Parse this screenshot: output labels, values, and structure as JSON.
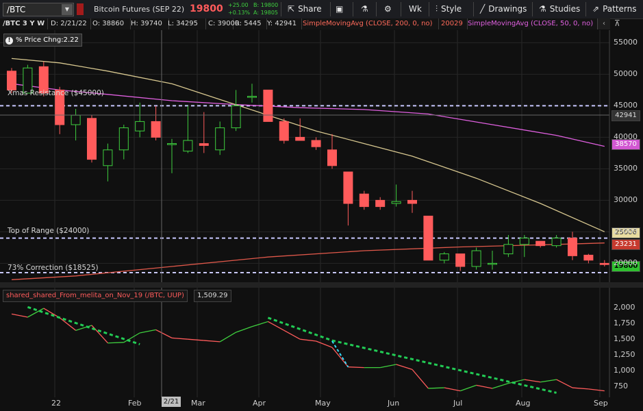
{
  "toolbar": {
    "symbol": "/BTC",
    "instrument": "Bitcoin Futures (SEP 22)",
    "last": "19800",
    "change": "+25.00",
    "change_pct": "+0.13%",
    "bid": "B: 19800",
    "ask": "A: 19805",
    "share": "Share",
    "period": "Wk",
    "style": "Style",
    "drawings": "Drawings",
    "studies": "Studies",
    "patterns": "Patterns"
  },
  "infobar": {
    "title": "/BTC 3 Y W",
    "date": "D: 2/21/22",
    "open": "O: 38860",
    "high": "H: 39740",
    "low": "L: 34295",
    "close": "C: 39000",
    "range": "R: 5445",
    "y": "Y: 42941",
    "sma200": "SimpleMovingAvg (CLOSE, 200, 0, no)",
    "sma200_val": "20029",
    "sma50": "SimpleMovingAvg (CLOSE, 50, 0, no)"
  },
  "price_change_label": "% Price Chng:2.22",
  "lines": {
    "xmas": "Xmas Resistance ($45000)",
    "top": "Top of Range ($24000)",
    "corr": "73% Correction ($18525)"
  },
  "tags": {
    "y": "42941",
    "sma50": "38570",
    "sma200_a": "25006",
    "sma200_b": "23231",
    "last": "19800"
  },
  "indicator": {
    "name": "shared_shared_From_melita_on_Nov_19 (/BTC, UUP)",
    "value": "1,509.29"
  },
  "x_ticks": [
    "22",
    "Feb",
    "Mar",
    "Apr",
    "May",
    "Jun",
    "Jul",
    "Aug",
    "Sep"
  ],
  "cursor_date": "2/21",
  "y_ticks": [
    "55000",
    "50000",
    "45000",
    "40000",
    "35000",
    "30000",
    "25000",
    "20000"
  ],
  "ind_y_ticks": [
    "2,000",
    "1,750",
    "1,500",
    "1,250",
    "1,000",
    "750"
  ],
  "colors": {
    "up": "#3fd03f",
    "down": "#ff5b5b",
    "sma200": "#e0584a",
    "sma50": "#e060e0",
    "sma_tan": "#d8c890",
    "hline": "#c8c8ff"
  },
  "chart_data": {
    "type": "candlestick",
    "timeframe": "W",
    "candles": [
      {
        "o": 50500,
        "h": 51000,
        "l": 47000,
        "c": 47500
      },
      {
        "o": 47000,
        "h": 51500,
        "l": 47000,
        "c": 51000
      },
      {
        "o": 51200,
        "h": 52000,
        "l": 46500,
        "c": 47000
      },
      {
        "o": 47500,
        "h": 48000,
        "l": 40500,
        "c": 42000
      },
      {
        "o": 42000,
        "h": 44500,
        "l": 39500,
        "c": 43500
      },
      {
        "o": 43000,
        "h": 43500,
        "l": 36000,
        "c": 36500
      },
      {
        "o": 35500,
        "h": 39000,
        "l": 33000,
        "c": 38000
      },
      {
        "o": 38000,
        "h": 42000,
        "l": 36500,
        "c": 41500
      },
      {
        "o": 41000,
        "h": 45500,
        "l": 40000,
        "c": 42500
      },
      {
        "o": 42500,
        "h": 45000,
        "l": 39500,
        "c": 40000
      },
      {
        "o": 38860,
        "h": 39740,
        "l": 34295,
        "c": 39000
      },
      {
        "o": 37800,
        "h": 45000,
        "l": 37500,
        "c": 39500
      },
      {
        "o": 39000,
        "h": 44000,
        "l": 37500,
        "c": 38700
      },
      {
        "o": 38000,
        "h": 42500,
        "l": 37200,
        "c": 41500
      },
      {
        "o": 41500,
        "h": 47500,
        "l": 41000,
        "c": 45000
      },
      {
        "o": 46500,
        "h": 48500,
        "l": 45500,
        "c": 46500
      },
      {
        "o": 47500,
        "h": 47500,
        "l": 42500,
        "c": 42500
      },
      {
        "o": 42500,
        "h": 43000,
        "l": 39000,
        "c": 39500
      },
      {
        "o": 40000,
        "h": 43000,
        "l": 39500,
        "c": 39500
      },
      {
        "o": 39500,
        "h": 40000,
        "l": 38000,
        "c": 38500
      },
      {
        "o": 38000,
        "h": 40500,
        "l": 35000,
        "c": 35500
      },
      {
        "o": 34500,
        "h": 34500,
        "l": 26000,
        "c": 29500
      },
      {
        "o": 31000,
        "h": 31500,
        "l": 28500,
        "c": 29000
      },
      {
        "o": 30000,
        "h": 30500,
        "l": 28500,
        "c": 29000
      },
      {
        "o": 29500,
        "h": 32500,
        "l": 29000,
        "c": 29800
      },
      {
        "o": 30000,
        "h": 31500,
        "l": 28000,
        "c": 29500
      },
      {
        "o": 27500,
        "h": 27500,
        "l": 20500,
        "c": 20500
      },
      {
        "o": 20500,
        "h": 21800,
        "l": 20000,
        "c": 21500
      },
      {
        "o": 21500,
        "h": 21500,
        "l": 18800,
        "c": 19500
      },
      {
        "o": 19500,
        "h": 22500,
        "l": 19000,
        "c": 22000
      },
      {
        "o": 20000,
        "h": 22000,
        "l": 19000,
        "c": 20000
      },
      {
        "o": 21500,
        "h": 24500,
        "l": 21000,
        "c": 23000
      },
      {
        "o": 23000,
        "h": 24500,
        "l": 21000,
        "c": 24000
      },
      {
        "o": 23500,
        "h": 23500,
        "l": 22500,
        "c": 22800
      },
      {
        "o": 22800,
        "h": 24500,
        "l": 22500,
        "c": 24000
      },
      {
        "o": 24000,
        "h": 25000,
        "l": 20500,
        "c": 21200
      },
      {
        "o": 21300,
        "h": 21500,
        "l": 20000,
        "c": 20500
      },
      {
        "o": 20000,
        "h": 20500,
        "l": 19500,
        "c": 19800
      },
      {
        "o": 19800,
        "h": 19900,
        "l": 19700,
        "c": 19800
      }
    ],
    "sma50": [
      [
        0,
        48500
      ],
      [
        3,
        47500
      ],
      [
        6,
        46800
      ],
      [
        10,
        45800
      ],
      [
        14,
        45200
      ],
      [
        18,
        44700
      ],
      [
        22,
        44400
      ],
      [
        26,
        43700
      ],
      [
        30,
        42000
      ],
      [
        34,
        40300
      ],
      [
        37,
        38570
      ]
    ],
    "sma_tan": [
      [
        0,
        52500
      ],
      [
        3,
        51800
      ],
      [
        6,
        50500
      ],
      [
        10,
        48500
      ],
      [
        13,
        46000
      ],
      [
        16,
        43500
      ],
      [
        19,
        41000
      ],
      [
        22,
        39000
      ],
      [
        25,
        37000
      ],
      [
        29,
        33500
      ],
      [
        33,
        29500
      ],
      [
        37,
        25006
      ]
    ],
    "sma200": [
      [
        0,
        17400
      ],
      [
        4,
        18000
      ],
      [
        10,
        19500
      ],
      [
        16,
        21000
      ],
      [
        22,
        22000
      ],
      [
        28,
        22600
      ],
      [
        34,
        23000
      ],
      [
        37,
        23231
      ]
    ],
    "hlines": [
      45000,
      24000,
      18525,
      42941
    ],
    "ylim": [
      17000,
      57000
    ],
    "indicator": {
      "series": [
        [
          0,
          1900
        ],
        [
          1,
          1850
        ],
        [
          2,
          1990
        ],
        [
          3,
          1840
        ],
        [
          4,
          1640
        ],
        [
          5,
          1720
        ],
        [
          6,
          1440
        ],
        [
          7,
          1450
        ],
        [
          8,
          1600
        ],
        [
          9,
          1650
        ],
        [
          10,
          1520
        ],
        [
          11,
          1500
        ],
        [
          12,
          1480
        ],
        [
          13,
          1460
        ],
        [
          14,
          1610
        ],
        [
          15,
          1700
        ],
        [
          16,
          1780
        ],
        [
          17,
          1640
        ],
        [
          18,
          1500
        ],
        [
          19,
          1470
        ],
        [
          20,
          1370
        ],
        [
          21,
          1060
        ],
        [
          22,
          1050
        ],
        [
          23,
          1050
        ],
        [
          24,
          1100
        ],
        [
          25,
          1020
        ],
        [
          26,
          720
        ],
        [
          27,
          730
        ],
        [
          28,
          680
        ],
        [
          29,
          770
        ],
        [
          30,
          720
        ],
        [
          31,
          800
        ],
        [
          32,
          860
        ],
        [
          33,
          820
        ],
        [
          34,
          860
        ],
        [
          35,
          730
        ],
        [
          36,
          710
        ],
        [
          37,
          680
        ]
      ],
      "trend_green": [
        [
          [
            1,
            2010
          ],
          [
            8,
            1420
          ]
        ],
        [
          [
            16,
            1840
          ],
          [
            20,
            1480
          ]
        ],
        [
          [
            20,
            1480
          ],
          [
            34,
            650
          ]
        ]
      ],
      "trend_cyan": [
        [
          [
            20,
            1470
          ],
          [
            21,
            1060
          ]
        ]
      ],
      "ylim": [
        600,
        2100
      ]
    }
  }
}
